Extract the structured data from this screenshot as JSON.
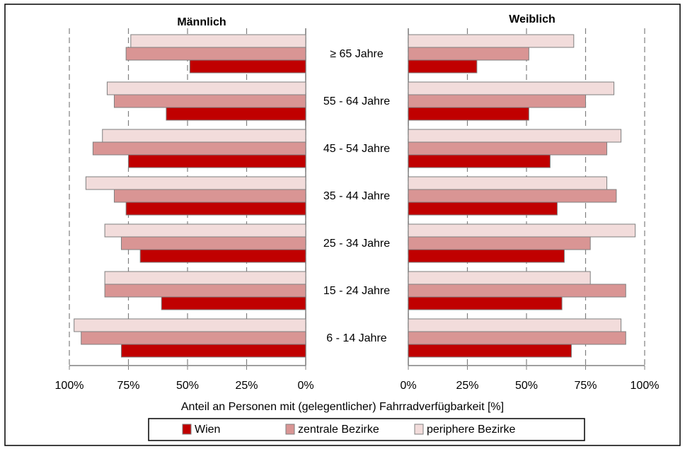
{
  "chart_data": {
    "type": "bar",
    "orientation": "horizontal",
    "xlabel": "Anteil an Personen mit (gelegentlicher)  Fahrradverfügbarkeit  [%]",
    "categories": [
      "≥ 65 Jahre",
      "55 - 64 Jahre",
      "45 - 54 Jahre",
      "35 - 44 Jahre",
      "25 - 34 Jahre",
      "15 - 24 Jahre",
      "6 - 14 Jahre"
    ],
    "series": [
      {
        "name": "Wien",
        "color": "#c00000"
      },
      {
        "name": "zentrale  Bezirke",
        "color": "#d99594"
      },
      {
        "name": "periphere  Bezirke",
        "color": "#f2dcdb"
      }
    ],
    "grid": true,
    "panels": [
      {
        "title": "Männlich",
        "xlim": [
          100,
          0
        ],
        "xticks": [
          {
            "value": 100,
            "label": "100%"
          },
          {
            "value": 75,
            "label": "75%"
          },
          {
            "value": 50,
            "label": "50%"
          },
          {
            "value": 25,
            "label": "25%"
          },
          {
            "value": 0,
            "label": "0%"
          }
        ],
        "values": [
          [
            49,
            59,
            75,
            76,
            70,
            61,
            78
          ],
          [
            76,
            81,
            90,
            81,
            78,
            85,
            95
          ],
          [
            74,
            84,
            86,
            93,
            85,
            85,
            98
          ]
        ]
      },
      {
        "title": "Weiblich",
        "xlim": [
          0,
          100
        ],
        "xticks": [
          {
            "value": 0,
            "label": "0%"
          },
          {
            "value": 25,
            "label": "25%"
          },
          {
            "value": 50,
            "label": "50%"
          },
          {
            "value": 75,
            "label": "75%"
          },
          {
            "value": 100,
            "label": "100%"
          }
        ],
        "values": [
          [
            29,
            51,
            60,
            63,
            66,
            65,
            69
          ],
          [
            51,
            75,
            84,
            88,
            77,
            92,
            92
          ],
          [
            70,
            87,
            90,
            84,
            96,
            77,
            90
          ]
        ]
      }
    ]
  }
}
